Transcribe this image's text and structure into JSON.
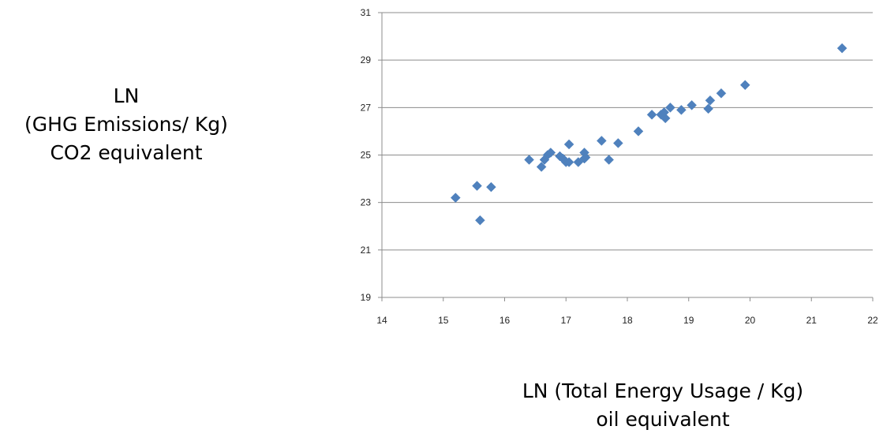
{
  "chart_data": {
    "type": "scatter",
    "title": "",
    "ylabel_lines": [
      "LN",
      "(GHG Emissions/ Kg)",
      "CO2 equivalent"
    ],
    "xlabel_lines": [
      "LN (Total Energy Usage / Kg)",
      "oil equivalent"
    ],
    "xlim": [
      14,
      22
    ],
    "ylim": [
      19,
      31
    ],
    "xticks": [
      "14",
      "15",
      "16",
      "17",
      "18",
      "19",
      "20",
      "21",
      "22"
    ],
    "yticks": [
      "19",
      "21",
      "23",
      "25",
      "27",
      "29",
      "31"
    ],
    "grid": "horizontal",
    "legend": "none",
    "marker_color": "#4f81bd",
    "series": [
      {
        "x": [
          15.2,
          15.55,
          15.6,
          15.78,
          16.4,
          16.6,
          16.65,
          16.7,
          16.75,
          16.9,
          16.95,
          17.0,
          17.05,
          17.05,
          17.2,
          17.3,
          17.3,
          17.32,
          17.58,
          17.7,
          17.85,
          18.18,
          18.4,
          18.55,
          18.6,
          18.62,
          18.7,
          18.88,
          19.05,
          19.32,
          19.35,
          19.53,
          19.92,
          21.5
        ],
        "y": [
          23.2,
          23.7,
          22.25,
          23.65,
          24.8,
          24.5,
          24.8,
          25.0,
          25.1,
          24.95,
          24.85,
          24.7,
          25.45,
          24.7,
          24.7,
          24.85,
          25.1,
          24.9,
          25.6,
          24.8,
          25.5,
          26.0,
          26.7,
          26.7,
          26.8,
          26.55,
          27.0,
          26.9,
          27.1,
          26.95,
          27.3,
          27.6,
          27.95,
          29.5
        ]
      }
    ]
  }
}
